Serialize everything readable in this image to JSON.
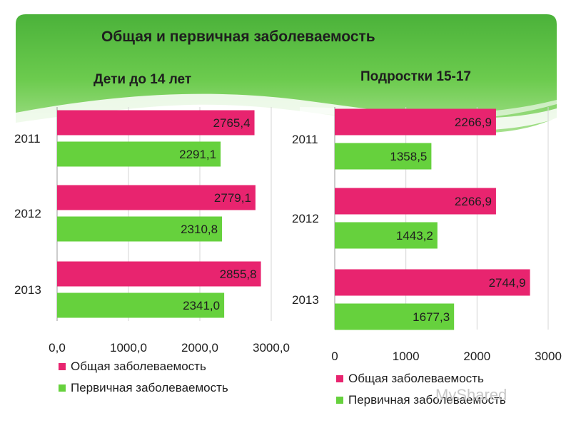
{
  "slide": {
    "title": "Общая и первичная заболеваемость",
    "watermark": "MyShared",
    "colors": {
      "green_band": "#5ec146",
      "general": "#e8246f",
      "primary": "#66d13d"
    }
  },
  "chart_data": [
    {
      "type": "bar",
      "orientation": "horizontal",
      "title": "Дети до 14 лет",
      "categories": [
        "2011",
        "2012",
        "2013"
      ],
      "series": [
        {
          "name": "Общая заболеваемость",
          "color": "#e8246f",
          "values": [
            2765.4,
            2779.1,
            2855.8
          ],
          "labels": [
            "2765,4",
            "2779,1",
            "2855,8"
          ]
        },
        {
          "name": "Первичная заболеваемость",
          "color": "#66d13d",
          "values": [
            2291.1,
            2310.8,
            2341.0
          ],
          "labels": [
            "2291,1",
            "2310,8",
            "2341,0"
          ]
        }
      ],
      "xlim": [
        0,
        3000
      ],
      "xticks": [
        0,
        1000,
        2000,
        3000
      ],
      "xtick_labels": [
        "0,0",
        "1000,0",
        "2000,0",
        "3000,0"
      ],
      "grid": true,
      "legend": "bottom"
    },
    {
      "type": "bar",
      "orientation": "horizontal",
      "title": "Подростки 15-17",
      "categories": [
        "2011",
        "2012",
        "2013"
      ],
      "series": [
        {
          "name": "Общая заболеваемость",
          "color": "#e8246f",
          "values": [
            2266.9,
            2266.9,
            2744.9
          ],
          "labels": [
            "2266,9",
            "2266,9",
            "2744,9"
          ]
        },
        {
          "name": "Первичная заболеваемость",
          "color": "#66d13d",
          "values": [
            1358.5,
            1443.2,
            1677.3
          ],
          "labels": [
            "1358,5",
            "1443,2",
            "1677,3"
          ]
        }
      ],
      "xlim": [
        0,
        3000
      ],
      "xticks": [
        0,
        1000,
        2000,
        3000
      ],
      "xtick_labels": [
        "0",
        "1000",
        "2000",
        "3000"
      ],
      "grid": true,
      "legend": "bottom"
    }
  ]
}
